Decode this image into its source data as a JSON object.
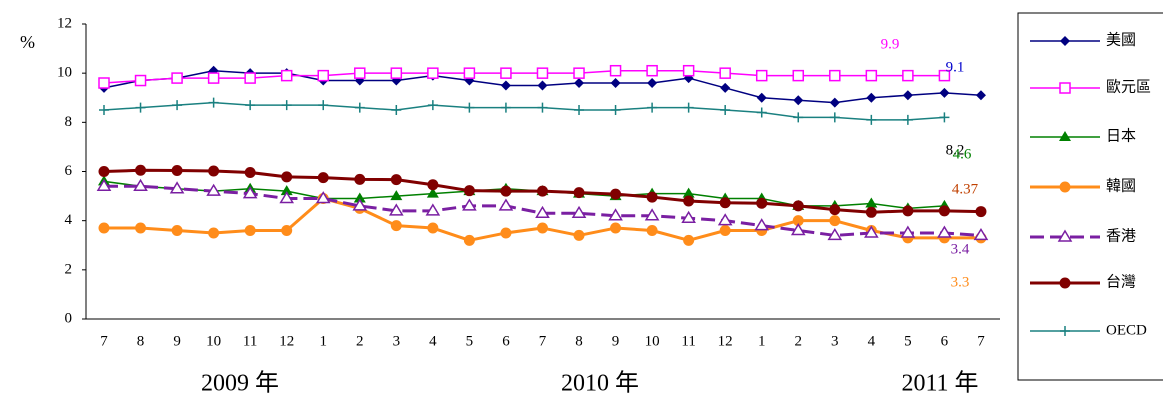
{
  "chart_data": {
    "type": "line",
    "y_unit": "%",
    "categories": [
      "7",
      "8",
      "9",
      "10",
      "11",
      "12",
      "1",
      "2",
      "3",
      "4",
      "5",
      "6",
      "7",
      "8",
      "9",
      "10",
      "11",
      "12",
      "1",
      "2",
      "3",
      "4",
      "5",
      "6",
      "7"
    ],
    "year_labels": [
      "2009 年",
      "2010 年",
      "2011 年"
    ],
    "ylim": [
      0,
      12
    ],
    "yticks": [
      0,
      2,
      4,
      6,
      8,
      10,
      12
    ],
    "series": [
      {
        "name": "美國",
        "color": "#000080",
        "marker": "diamond",
        "width": 1.5,
        "values": [
          9.4,
          9.7,
          9.8,
          10.1,
          10.0,
          10.0,
          9.7,
          9.7,
          9.7,
          9.9,
          9.7,
          9.5,
          9.5,
          9.6,
          9.6,
          9.6,
          9.8,
          9.4,
          9.0,
          8.9,
          8.8,
          9.0,
          9.1,
          9.2,
          9.1
        ]
      },
      {
        "name": "歐元區",
        "color": "#ff00ff",
        "marker": "square-open",
        "width": 1.5,
        "values": [
          9.6,
          9.7,
          9.8,
          9.8,
          9.8,
          9.9,
          9.9,
          10.0,
          10.0,
          10.0,
          10.0,
          10.0,
          10.0,
          10.0,
          10.1,
          10.1,
          10.1,
          10.0,
          9.9,
          9.9,
          9.9,
          9.9,
          9.9,
          9.9,
          null
        ]
      },
      {
        "name": "日本",
        "color": "#008000",
        "marker": "triangle",
        "width": 1.5,
        "values": [
          5.6,
          5.4,
          5.3,
          5.2,
          5.3,
          5.2,
          4.9,
          4.9,
          5.0,
          5.1,
          5.2,
          5.3,
          5.2,
          5.1,
          5.0,
          5.1,
          5.1,
          4.9,
          4.9,
          4.6,
          4.6,
          4.7,
          4.5,
          4.6,
          null
        ]
      },
      {
        "name": "韓國",
        "color": "#ff8c1a",
        "marker": "circle",
        "width": 3,
        "values": [
          3.7,
          3.7,
          3.6,
          3.5,
          3.6,
          3.6,
          4.9,
          4.5,
          3.8,
          3.7,
          3.2,
          3.5,
          3.7,
          3.4,
          3.7,
          3.6,
          3.2,
          3.6,
          3.6,
          4.0,
          4.0,
          3.6,
          3.3,
          3.3,
          3.3
        ]
      },
      {
        "name": "香港",
        "color": "#7a1fa2",
        "marker": "triangle-open",
        "width": 3,
        "dashed": true,
        "values": [
          5.4,
          5.4,
          5.3,
          5.2,
          5.1,
          4.9,
          4.9,
          4.6,
          4.4,
          4.4,
          4.6,
          4.6,
          4.3,
          4.3,
          4.2,
          4.2,
          4.1,
          4.0,
          3.8,
          3.6,
          3.4,
          3.5,
          3.5,
          3.5,
          3.4
        ]
      },
      {
        "name": "台灣",
        "color": "#800000",
        "marker": "circle",
        "width": 3,
        "values": [
          6.0,
          6.05,
          6.04,
          6.02,
          5.96,
          5.78,
          5.75,
          5.68,
          5.67,
          5.46,
          5.22,
          5.2,
          5.2,
          5.14,
          5.08,
          4.96,
          4.8,
          4.73,
          4.71,
          4.6,
          4.45,
          4.34,
          4.4,
          4.4,
          4.37
        ]
      },
      {
        "name": "OECD",
        "color": "#1a8080",
        "marker": "plus",
        "width": 1.5,
        "values": [
          8.5,
          8.6,
          8.7,
          8.8,
          8.7,
          8.7,
          8.7,
          8.6,
          8.5,
          8.7,
          8.6,
          8.6,
          8.6,
          8.5,
          8.5,
          8.6,
          8.6,
          8.5,
          8.4,
          8.2,
          8.2,
          8.1,
          8.1,
          8.2,
          null
        ]
      }
    ],
    "annotations": [
      {
        "text": "9.9",
        "color": "#ff00ff"
      },
      {
        "text": "9.1",
        "color": "#0000cc"
      },
      {
        "text": "8.2",
        "color": "#000000"
      },
      {
        "text": "4.6",
        "color": "#008000"
      },
      {
        "text": "4.37",
        "color": "#c04000"
      },
      {
        "text": "3.4",
        "color": "#7a1fa2"
      },
      {
        "text": "3.3",
        "color": "#ff8c1a"
      }
    ]
  }
}
